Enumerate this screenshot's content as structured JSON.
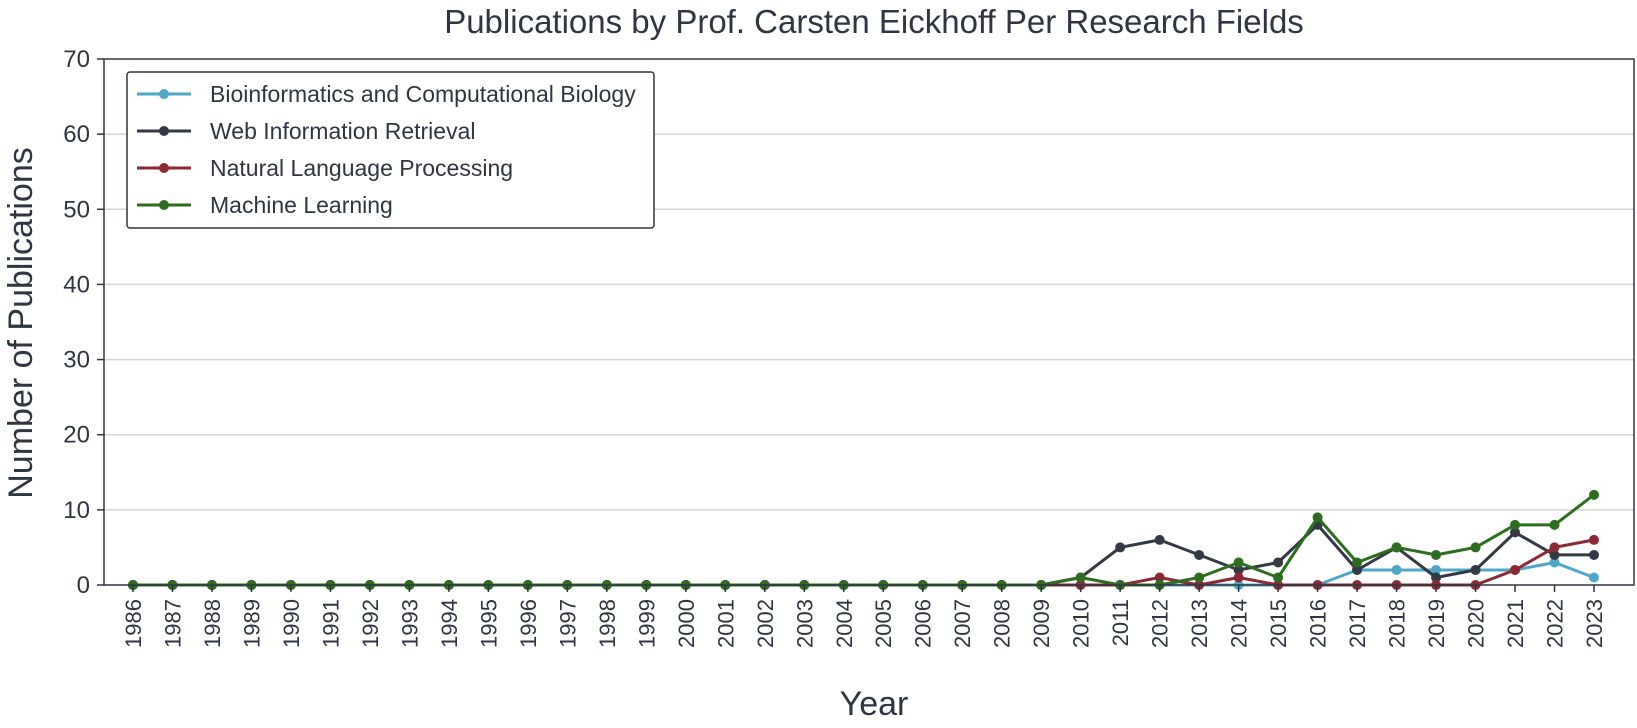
{
  "chart_data": {
    "type": "line",
    "title": "Publications by Prof. Carsten Eickhoff Per Research Fields",
    "xlabel": "Year",
    "ylabel": "Number of Publications",
    "ylim": [
      0,
      70
    ],
    "yticks": [
      "0",
      "10",
      "20",
      "30",
      "40",
      "50",
      "60",
      "70"
    ],
    "grid": "horizontal",
    "legend_position": "upper-left",
    "categories": [
      "1986",
      "1987",
      "1988",
      "1989",
      "1990",
      "1991",
      "1992",
      "1993",
      "1994",
      "1995",
      "1996",
      "1997",
      "1998",
      "1999",
      "2000",
      "2001",
      "2002",
      "2003",
      "2004",
      "2005",
      "2006",
      "2007",
      "2008",
      "2009",
      "2010",
      "2011",
      "2012",
      "2013",
      "2014",
      "2015",
      "2016",
      "2017",
      "2018",
      "2019",
      "2020",
      "2021",
      "2022",
      "2023"
    ],
    "series": [
      {
        "name": "Bioinformatics and Computational Biology",
        "color": "#4fa8c9",
        "values": [
          0,
          0,
          0,
          0,
          0,
          0,
          0,
          0,
          0,
          0,
          0,
          0,
          0,
          0,
          0,
          0,
          0,
          0,
          0,
          0,
          0,
          0,
          0,
          0,
          0,
          0,
          0,
          0,
          0,
          0,
          0,
          2,
          2,
          2,
          2,
          2,
          3,
          1
        ]
      },
      {
        "name": "Web Information Retrieval",
        "color": "#333a45",
        "values": [
          0,
          0,
          0,
          0,
          0,
          0,
          0,
          0,
          0,
          0,
          0,
          0,
          0,
          0,
          0,
          0,
          0,
          0,
          0,
          0,
          0,
          0,
          0,
          0,
          1,
          5,
          6,
          4,
          2,
          3,
          8,
          2,
          5,
          1,
          2,
          7,
          4,
          4
        ]
      },
      {
        "name": "Natural Language Processing",
        "color": "#8b2a35",
        "values": [
          0,
          0,
          0,
          0,
          0,
          0,
          0,
          0,
          0,
          0,
          0,
          0,
          0,
          0,
          0,
          0,
          0,
          0,
          0,
          0,
          0,
          0,
          0,
          0,
          0,
          0,
          1,
          0,
          1,
          0,
          0,
          0,
          0,
          0,
          0,
          2,
          5,
          6
        ]
      },
      {
        "name": "Machine Learning",
        "color": "#2d6e1e",
        "values": [
          0,
          0,
          0,
          0,
          0,
          0,
          0,
          0,
          0,
          0,
          0,
          0,
          0,
          0,
          0,
          0,
          0,
          0,
          0,
          0,
          0,
          0,
          0,
          0,
          1,
          0,
          0,
          1,
          3,
          1,
          9,
          3,
          5,
          4,
          5,
          8,
          8,
          12
        ]
      }
    ]
  }
}
